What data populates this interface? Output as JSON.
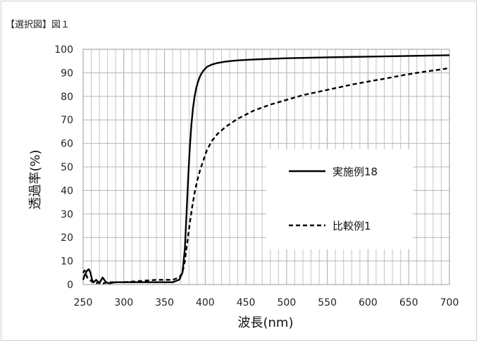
{
  "figure": {
    "caption": "【選択図】図１"
  },
  "chart_data": {
    "type": "line",
    "title": "",
    "xlabel": "波長(nm)",
    "ylabel": "透過率(%)",
    "xlim": [
      250,
      700
    ],
    "ylim": [
      0,
      100
    ],
    "xticks": [
      250,
      300,
      350,
      400,
      450,
      500,
      550,
      600,
      650,
      700
    ],
    "yticks": [
      0,
      10,
      20,
      30,
      40,
      50,
      60,
      70,
      80,
      90,
      100
    ],
    "grid": "on",
    "legend_position": "center-right",
    "series": [
      {
        "name": "実施例18",
        "style": "solid",
        "color": "#000000",
        "x": [
          250,
          252,
          255,
          257,
          259,
          261,
          263,
          266,
          270,
          274,
          278,
          282,
          290,
          300,
          320,
          340,
          360,
          368,
          372,
          375,
          377,
          379,
          381,
          383,
          385,
          387,
          389,
          391,
          393,
          395,
          398,
          402,
          408,
          415,
          425,
          440,
          460,
          500,
          550,
          600,
          650,
          700
        ],
        "y": [
          2,
          4,
          6,
          6.5,
          5,
          2,
          1,
          2,
          0.5,
          3,
          1,
          0.5,
          1,
          1,
          1,
          1,
          1,
          2,
          5,
          15,
          30,
          45,
          58,
          68,
          75,
          80,
          83.5,
          86,
          88,
          89.5,
          91,
          92.5,
          93.5,
          94.2,
          94.8,
          95.3,
          95.7,
          96.2,
          96.6,
          96.9,
          97.2,
          97.5
        ]
      },
      {
        "name": "比較例1",
        "style": "dashed",
        "color": "#000000",
        "x": [
          250,
          252,
          255,
          258,
          262,
          266,
          270,
          275,
          280,
          290,
          300,
          320,
          340,
          360,
          368,
          372,
          375,
          378,
          381,
          384,
          387,
          390,
          394,
          398,
          402,
          408,
          415,
          425,
          440,
          460,
          480,
          500,
          520,
          540,
          560,
          580,
          600,
          620,
          640,
          660,
          680,
          700
        ],
        "y": [
          5,
          6,
          3,
          2,
          1,
          0.5,
          1,
          0.5,
          1,
          1,
          1,
          1.5,
          2,
          2,
          3,
          5,
          10,
          18,
          26,
          33,
          39,
          44,
          49,
          53,
          57,
          61,
          64,
          67,
          70.5,
          74,
          76.5,
          78.5,
          80.5,
          82,
          83.5,
          85,
          86.3,
          87.5,
          88.8,
          90,
          91,
          92
        ]
      }
    ]
  }
}
